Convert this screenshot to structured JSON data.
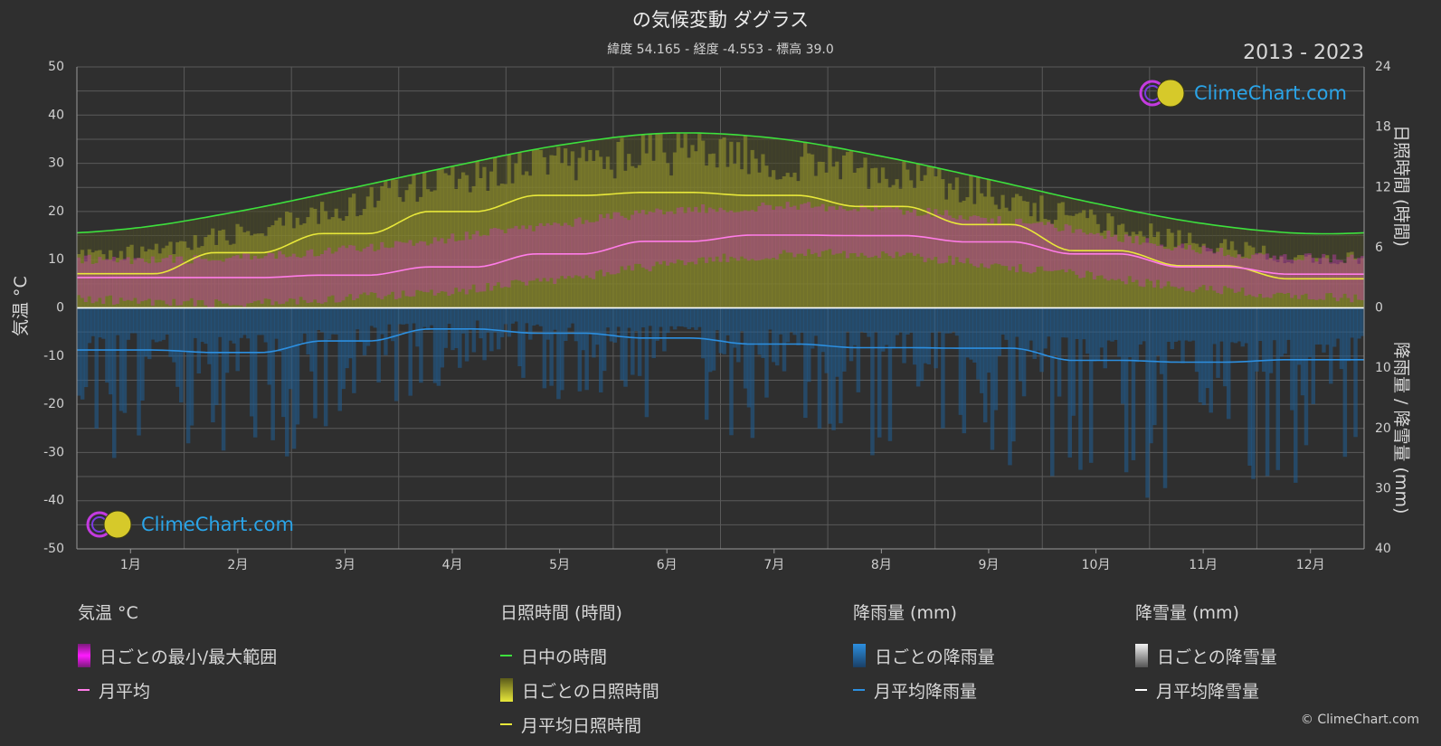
{
  "header": {
    "title": "の気候変動 ダグラス",
    "subtitle": "緯度 54.165 - 経度 -4.553 - 標高 39.0",
    "years": "2013 - 2023"
  },
  "logo": {
    "text": "ClimeChart.com"
  },
  "copyright": "© ClimeChart.com",
  "colors": {
    "background": "#2f2f2f",
    "daylight": "#3de03d",
    "sunshine_avg": "#e8e83a",
    "temp_avg": "#ff7ce8",
    "rain_avg": "#2c8fe0",
    "snow_avg": "#ffffff",
    "temp_band": "#d92bc4",
    "sunshine_band": "#b5b52a",
    "rain_band": "#1f6fb0"
  },
  "chart_data": {
    "type": "line",
    "title": "の気候変動 ダグラス",
    "categories": [
      "1月",
      "2月",
      "3月",
      "4月",
      "5月",
      "6月",
      "7月",
      "8月",
      "9月",
      "10月",
      "11月",
      "12月"
    ],
    "y_left": {
      "label": "気温 °C",
      "ylim": [
        -50,
        50
      ],
      "ticks": [
        50,
        40,
        30,
        20,
        10,
        0,
        -10,
        -20,
        -30,
        -40,
        -50
      ]
    },
    "y_right_top": {
      "label": "日照時間 (時間)",
      "ylim": [
        0,
        24
      ],
      "ticks": [
        24,
        18,
        12,
        6,
        0
      ]
    },
    "y_right_bottom": {
      "label": "降雨量 / 降雪量 (mm)",
      "ylim": [
        0,
        40
      ],
      "ticks": [
        0,
        10,
        20,
        30,
        40
      ]
    },
    "grid": true,
    "series": [
      {
        "name": "日中の時間",
        "axis": "sunshine_hours",
        "values": [
          7.9,
          9.6,
          11.8,
          14.1,
          16.2,
          17.4,
          16.9,
          15.1,
          12.8,
          10.4,
          8.4,
          7.4
        ]
      },
      {
        "name": "月平均日照時間",
        "axis": "sunshine_hours",
        "values": [
          3.4,
          5.5,
          7.4,
          9.6,
          11.2,
          11.5,
          11.2,
          10.1,
          8.3,
          5.7,
          4.2,
          2.9
        ]
      },
      {
        "name": "月平均",
        "axis": "temperature_c",
        "values": [
          6.3,
          6.3,
          6.8,
          8.5,
          11.2,
          13.8,
          15.1,
          15.0,
          13.7,
          11.2,
          8.5,
          7.0
        ]
      },
      {
        "name": "月平均降雨量",
        "axis": "precip_mm",
        "values": [
          7.0,
          7.4,
          5.5,
          3.5,
          4.2,
          5.0,
          6.0,
          6.6,
          6.7,
          8.7,
          9.0,
          8.6
        ]
      },
      {
        "name": "月平均降雪量",
        "axis": "precip_mm",
        "values": [
          0,
          0,
          0,
          0,
          0,
          0,
          0,
          0,
          0,
          0,
          0,
          0
        ]
      }
    ],
    "bands": {
      "temperature_min_max": {
        "min": [
          2.5,
          2.0,
          3.0,
          4.5,
          7.0,
          10.0,
          12.0,
          12.0,
          10.0,
          7.5,
          5.0,
          3.5
        ],
        "max": [
          9.0,
          9.5,
          11.0,
          13.5,
          16.5,
          19.0,
          20.0,
          19.5,
          17.5,
          14.5,
          11.0,
          9.5
        ]
      },
      "sunshine_daily_max": [
        5.5,
        7.5,
        10.0,
        13.0,
        14.5,
        15.5,
        15.0,
        13.5,
        11.5,
        8.5,
        6.5,
        5.0
      ]
    }
  },
  "legend": {
    "groups": [
      {
        "title": "気温 °C",
        "items": [
          {
            "label": "日ごとの最小/最大範囲",
            "kind": "box",
            "color": "#e01ee0"
          },
          {
            "label": "月平均",
            "kind": "line",
            "color": "#ff7ce8"
          }
        ]
      },
      {
        "title": "日照時間 (時間)",
        "items": [
          {
            "label": "日中の時間",
            "kind": "line",
            "color": "#3de03d"
          },
          {
            "label": "日ごとの日照時間",
            "kind": "box",
            "color": "#d6d62e"
          },
          {
            "label": "月平均日照時間",
            "kind": "line",
            "color": "#e8e83a"
          }
        ]
      },
      {
        "title": "降雨量 (mm)",
        "items": [
          {
            "label": "日ごとの降雨量",
            "kind": "box",
            "color": "#2c8fe0"
          },
          {
            "label": "月平均降雨量",
            "kind": "line",
            "color": "#2c8fe0"
          }
        ]
      },
      {
        "title": "降雪量 (mm)",
        "items": [
          {
            "label": "日ごとの降雪量",
            "kind": "box",
            "color": "#e8e8e8"
          },
          {
            "label": "月平均降雪量",
            "kind": "line",
            "color": "#ffffff"
          }
        ]
      }
    ]
  }
}
